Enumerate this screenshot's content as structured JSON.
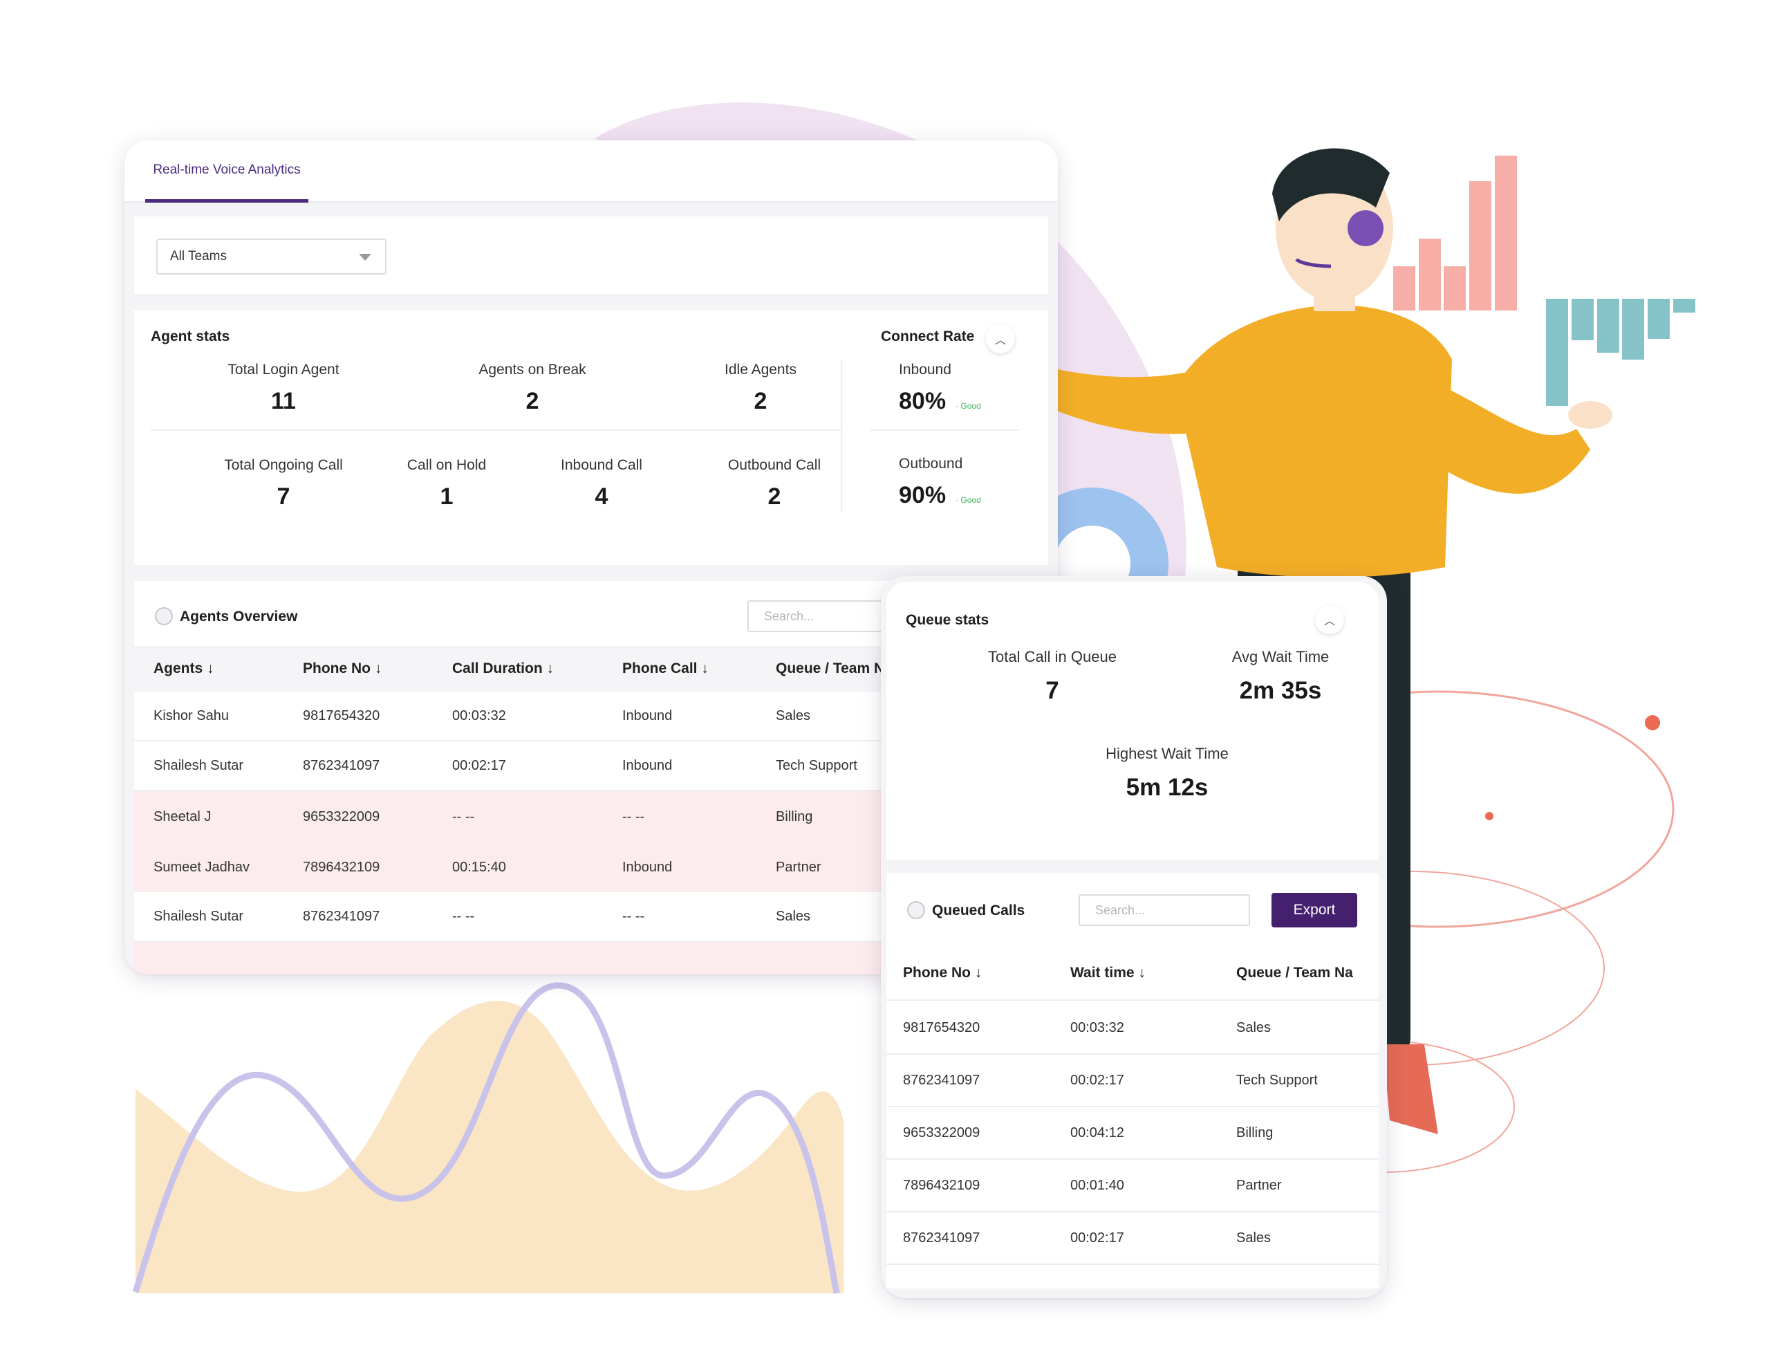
{
  "tabs": [
    {
      "label": "Real-time Voice Analytics",
      "active": true
    }
  ],
  "filter": {
    "selected": "All Teams"
  },
  "agent_stats": {
    "title": "Agent stats",
    "row1": [
      {
        "label": "Total Login Agent",
        "value": "11"
      },
      {
        "label": "Agents on Break",
        "value": "2"
      },
      {
        "label": "Idle Agents",
        "value": "2"
      }
    ],
    "row2": [
      {
        "label": "Total Ongoing Call",
        "value": "7"
      },
      {
        "label": "Call on Hold",
        "value": "1"
      },
      {
        "label": "Inbound Call",
        "value": "4"
      },
      {
        "label": "Outbound Call",
        "value": "2"
      }
    ]
  },
  "connect_rate": {
    "title": "Connect Rate",
    "items": [
      {
        "label": "Inbound",
        "value": "80%",
        "status": "Good"
      },
      {
        "label": "Outbound",
        "value": "90%",
        "status": "Good"
      }
    ]
  },
  "agents_overview": {
    "title": "Agents Overview",
    "search_placeholder": "Search...",
    "columns": [
      "Agents ↓",
      "Phone No ↓",
      "Call Duration ↓",
      "Phone Call ↓",
      "Queue / Team N"
    ],
    "rows": [
      {
        "agent": "Kishor Sahu",
        "phone": "9817654320",
        "duration": "00:03:32",
        "call": "Inbound",
        "queue": "Sales",
        "alert": false
      },
      {
        "agent": "Shailesh Sutar",
        "phone": "8762341097",
        "duration": "00:02:17",
        "call": "Inbound",
        "queue": "Tech Support",
        "alert": false
      },
      {
        "agent": "Sheetal J",
        "phone": "9653322009",
        "duration": "-- --",
        "call": "-- --",
        "queue": "Billing",
        "alert": true
      },
      {
        "agent": "Sumeet Jadhav",
        "phone": "7896432109",
        "duration": "00:15:40",
        "call": "Inbound",
        "queue": "Partner",
        "alert": true
      },
      {
        "agent": "Shailesh Sutar",
        "phone": "8762341097",
        "duration": "-- --",
        "call": "-- --",
        "queue": "Sales",
        "alert": false
      }
    ]
  },
  "queue_stats": {
    "title": "Queue stats",
    "items": [
      {
        "label": "Total Call in Queue",
        "value": "7"
      },
      {
        "label": "Avg Wait Time",
        "value": "2m 35s"
      },
      {
        "label": "Highest Wait Time",
        "value": "5m 12s"
      }
    ]
  },
  "queued_calls": {
    "title": "Queued Calls",
    "search_placeholder": "Search...",
    "export_label": "Export",
    "columns": [
      "Phone No ↓",
      "Wait time ↓",
      "Queue / Team Na"
    ],
    "rows": [
      {
        "phone": "9817654320",
        "wait": "00:03:32",
        "queue": "Sales"
      },
      {
        "phone": "8762341097",
        "wait": "00:02:17",
        "queue": "Tech Support"
      },
      {
        "phone": "9653322009",
        "wait": "00:04:12",
        "queue": "Billing"
      },
      {
        "phone": "7896432109",
        "wait": "00:01:40",
        "queue": "Partner"
      },
      {
        "phone": "8762341097",
        "wait": "00:02:17",
        "queue": "Sales"
      }
    ]
  },
  "colors": {
    "brand": "#44206f",
    "good": "#3cb85c",
    "alert_row": "#fcecee"
  },
  "icons": [
    "chevron-down-icon",
    "chevron-up-icon",
    "info-icon"
  ]
}
